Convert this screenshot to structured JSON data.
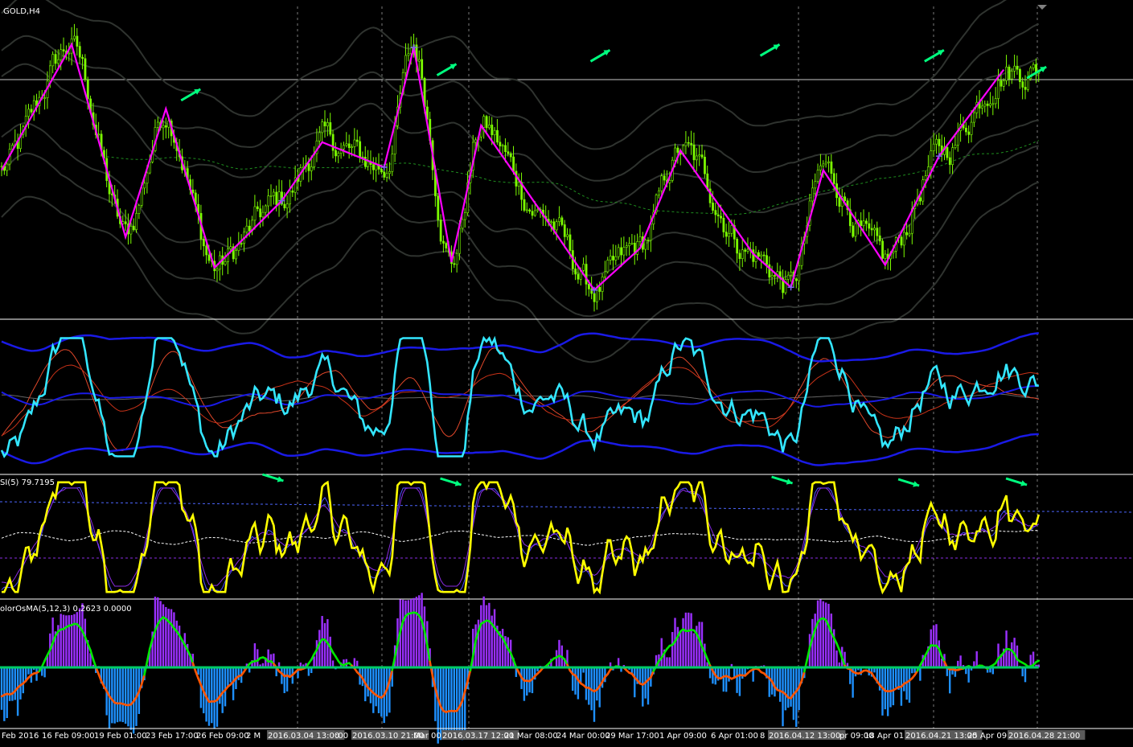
{
  "chart_data": {
    "type": "line",
    "panels": [
      {
        "name": "price",
        "label": "GOLD,H4"
      },
      {
        "name": "bands",
        "label": ""
      },
      {
        "name": "rsi",
        "label": "SI(5) 79.7195"
      },
      {
        "name": "osma",
        "label": "olorOsMA(5,12,3) 0.2623 0.0000"
      }
    ],
    "x_ticks": [
      "Feb 2016",
      "16 Feb 09:00",
      "19 Feb 01:00",
      "23 Feb 17:00",
      "26 Feb 09:00",
      "2 M",
      "2016.03.04 13:00",
      ":00",
      "2016.03.10 21:00",
      "Mar 00:",
      "2016.03.17 12:00",
      "21 Mar 08:00",
      "24 Mar 00:00",
      "29 Mar 17:00",
      "1 Apr 09:00",
      "6 Apr 01:00",
      "8",
      "2016.04.12 13:00",
      "pr 09:00",
      "18 Apr 01:",
      "2016.04.21 13:00",
      "25 Apr 09:",
      "2016.04.28 21:00"
    ],
    "highlighted_ticks": [
      "2016.03.04 13:00",
      "2016.03.10 21:00",
      "2016.03.17 12:00",
      "2016.04.12 13:00",
      "2016.04.21 13:00",
      "2016.04.28 21:00"
    ],
    "zigzag": [
      [
        0,
        50
      ],
      [
        26,
        95
      ],
      [
        46,
        26
      ],
      [
        61,
        72
      ],
      [
        79,
        15
      ],
      [
        104,
        39
      ],
      [
        119,
        60
      ],
      [
        142,
        51
      ],
      [
        153,
        94
      ],
      [
        167,
        17
      ],
      [
        178,
        66
      ],
      [
        201,
        34
      ],
      [
        220,
        7
      ],
      [
        237,
        22
      ],
      [
        252,
        57
      ],
      [
        279,
        20
      ],
      [
        293,
        8
      ],
      [
        305,
        50
      ],
      [
        328,
        16
      ],
      [
        348,
        55
      ],
      [
        372,
        86
      ]
    ],
    "signal_arrows_price": [
      [
        75,
        9
      ],
      [
        170,
        18
      ],
      [
        227,
        23
      ],
      [
        290,
        25
      ],
      [
        351,
        23
      ],
      [
        389,
        17
      ]
    ],
    "signal_arrows_rsi": [
      [
        107,
        0
      ],
      [
        173,
        5
      ],
      [
        296,
        3
      ],
      [
        343,
        6
      ],
      [
        383,
        5
      ]
    ],
    "colors": {
      "background": "#000000",
      "candles": "#7CFC00",
      "zigzag": "#FF00FF",
      "arrow": "#00FF7F",
      "rsi_fast": "#FFFF00",
      "bands_main": "#33E6FF",
      "bands_outer": "#1A1AE6",
      "osma_up": "#9B30FF",
      "osma_down": "#1E90FF",
      "osma_line_up": "#00E600",
      "osma_line_down": "#FF5500"
    }
  }
}
